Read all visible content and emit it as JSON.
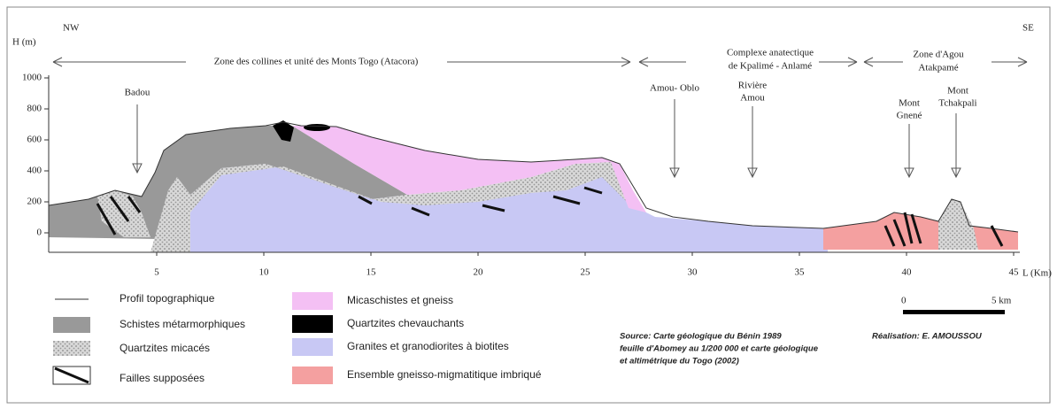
{
  "corners": {
    "left": "NW",
    "right": "SE"
  },
  "axes": {
    "y_label": "H (m)",
    "x_label": "L (Km)",
    "yticks": [
      0,
      200,
      400,
      600,
      800,
      1000
    ],
    "xticks": [
      5,
      10,
      15,
      20,
      25,
      30,
      35,
      40,
      45
    ]
  },
  "zones": [
    {
      "lines": [
        "Zone des collines et unité des Monts Togo (Atacora)"
      ]
    },
    {
      "lines": [
        "Complexe anatectique",
        "de Kpalimé - Anlamé"
      ]
    },
    {
      "lines": [
        "Zone d'Agou",
        "Atakpamé"
      ]
    }
  ],
  "locations": [
    {
      "lines": [
        "Badou"
      ]
    },
    {
      "lines": [
        "Amou- Oblo"
      ]
    },
    {
      "lines": [
        "Rivière",
        "Amou"
      ]
    },
    {
      "lines": [
        "Mont",
        "Gnené"
      ]
    },
    {
      "lines": [
        "Mont",
        "Tchakpali"
      ]
    }
  ],
  "legend": [
    "Profil topographique",
    "Schistes métarmorphiques",
    "Quartzites micacés",
    "Failles supposées",
    "Micaschistes  et gneiss",
    "Quartzites chevauchants",
    "Granites et granodiorites à biotites",
    "Ensemble gneisso-migmatitique imbriqué"
  ],
  "source": [
    "Source: Carte géologique du Bénin 1989",
    "feuille d'Abomey au 1/200 000 et carte géologique",
    "et altimétrique du Togo (2002)"
  ],
  "author": "Réalisation: E. AMOUSSOU",
  "scale": {
    "start": "0",
    "end": "5 km"
  }
}
